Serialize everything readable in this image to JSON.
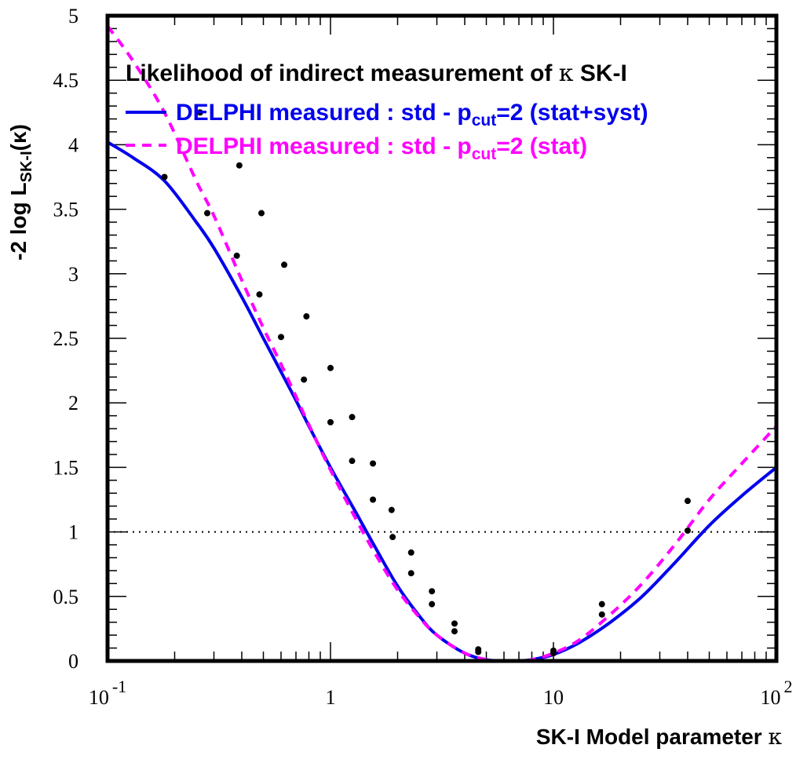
{
  "chart_data": {
    "type": "line",
    "title": "Likelihood of indirect measurement of κ SK-I",
    "title_greek": "κ",
    "title_tail": " SK-I",
    "title_head": "Likelihood of indirect measurement of ",
    "xlabel": "SK-I Model parameter κ",
    "xlabel_head": "SK-I Model parameter ",
    "xlabel_greek": "κ",
    "ylabel": "-2 log L_SK-I(κ)",
    "ylabel_head": "-2 log L",
    "ylabel_sub": "SK-I",
    "ylabel_tail": "(κ)",
    "x_scale": "log",
    "xlim": [
      0.1,
      100
    ],
    "ylim": [
      0,
      5
    ],
    "x_ticks": [
      {
        "value": 0.1,
        "base": "10",
        "exp": "-1"
      },
      {
        "value": 1,
        "base": "1",
        "exp": ""
      },
      {
        "value": 10,
        "base": "10",
        "exp": ""
      },
      {
        "value": 100,
        "base": "10",
        "exp": "2"
      }
    ],
    "y_ticks": [
      {
        "value": 0,
        "label": "0"
      },
      {
        "value": 0.5,
        "label": "0.5"
      },
      {
        "value": 1,
        "label": "1"
      },
      {
        "value": 1.5,
        "label": "1.5"
      },
      {
        "value": 2,
        "label": "2"
      },
      {
        "value": 2.5,
        "label": "2.5"
      },
      {
        "value": 3,
        "label": "3"
      },
      {
        "value": 3.5,
        "label": "3.5"
      },
      {
        "value": 4,
        "label": "4"
      },
      {
        "value": 4.5,
        "label": "4.5"
      },
      {
        "value": 5,
        "label": "5"
      }
    ],
    "reference_line": {
      "y": 1.0,
      "style": "dotted",
      "color": "#000000"
    },
    "grid": false,
    "legend_position": "top-right",
    "series": [
      {
        "name": "DELPHI measured : std - p_cut=2 (stat+syst)",
        "legend_head": "DELPHI measured : std - p",
        "legend_sub": "cut",
        "legend_tail": "=2 (stat+syst)",
        "color": "#0000ee",
        "dash": "solid",
        "x": [
          0.1,
          0.13,
          0.18,
          0.25,
          0.3,
          0.4,
          0.5,
          0.6,
          0.7,
          0.8,
          1.0,
          1.3,
          1.6,
          2.0,
          2.5,
          3.0,
          4.0,
          5.0,
          6.0,
          7.0,
          8.0,
          10.0,
          13.0,
          18.0,
          25.0,
          35.0,
          50.0,
          70.0,
          100.0
        ],
        "y": [
          4.02,
          3.9,
          3.72,
          3.4,
          3.2,
          2.82,
          2.5,
          2.24,
          2.02,
          1.82,
          1.5,
          1.15,
          0.87,
          0.58,
          0.35,
          0.2,
          0.06,
          0.01,
          0.0,
          0.0,
          0.01,
          0.05,
          0.14,
          0.3,
          0.5,
          0.76,
          1.05,
          1.28,
          1.5
        ]
      },
      {
        "name": "DELPHI measured : std - p_cut=2 (stat)",
        "legend_head": "DELPHI measured : std - p",
        "legend_sub": "cut",
        "legend_tail": "=2 (stat)",
        "color": "#ff00ff",
        "dash": "dashed",
        "x": [
          0.1,
          0.13,
          0.18,
          0.25,
          0.3,
          0.4,
          0.5,
          0.6,
          0.7,
          0.8,
          1.0,
          1.3,
          1.6,
          2.0,
          2.5,
          3.0,
          4.0,
          5.0,
          6.0,
          7.0,
          8.0,
          10.0,
          13.0,
          18.0,
          25.0,
          35.0,
          50.0,
          70.0,
          100.0
        ],
        "y": [
          4.92,
          4.65,
          4.25,
          3.72,
          3.45,
          2.95,
          2.58,
          2.3,
          2.05,
          1.83,
          1.48,
          1.1,
          0.82,
          0.55,
          0.34,
          0.2,
          0.06,
          0.01,
          0.0,
          0.0,
          0.01,
          0.06,
          0.16,
          0.36,
          0.6,
          0.9,
          1.25,
          1.53,
          1.82
        ]
      }
    ],
    "markers": {
      "color": "#000000",
      "points": [
        {
          "x": 0.18,
          "y": 3.75
        },
        {
          "x": 0.28,
          "y": 3.47
        },
        {
          "x": 0.38,
          "y": 3.14
        },
        {
          "x": 0.48,
          "y": 2.84
        },
        {
          "x": 0.6,
          "y": 2.51
        },
        {
          "x": 0.76,
          "y": 2.18
        },
        {
          "x": 1.0,
          "y": 1.85
        },
        {
          "x": 1.25,
          "y": 1.55
        },
        {
          "x": 1.55,
          "y": 1.25
        },
        {
          "x": 1.9,
          "y": 0.96
        },
        {
          "x": 2.3,
          "y": 0.68
        },
        {
          "x": 2.85,
          "y": 0.44
        },
        {
          "x": 3.6,
          "y": 0.23
        },
        {
          "x": 4.6,
          "y": 0.07
        },
        {
          "x": 10.0,
          "y": 0.06
        },
        {
          "x": 16.5,
          "y": 0.36
        },
        {
          "x": 40.0,
          "y": 1.01
        },
        {
          "x": 0.26,
          "y": 4.25
        },
        {
          "x": 0.39,
          "y": 3.84
        },
        {
          "x": 0.49,
          "y": 3.47
        },
        {
          "x": 0.62,
          "y": 3.07
        },
        {
          "x": 0.78,
          "y": 2.67
        },
        {
          "x": 1.0,
          "y": 2.27
        },
        {
          "x": 1.25,
          "y": 1.89
        },
        {
          "x": 1.55,
          "y": 1.53
        },
        {
          "x": 1.88,
          "y": 1.17
        },
        {
          "x": 2.3,
          "y": 0.84
        },
        {
          "x": 2.85,
          "y": 0.54
        },
        {
          "x": 3.6,
          "y": 0.29
        },
        {
          "x": 4.6,
          "y": 0.09
        },
        {
          "x": 10.0,
          "y": 0.08
        },
        {
          "x": 16.5,
          "y": 0.44
        },
        {
          "x": 40.0,
          "y": 1.24
        }
      ]
    }
  }
}
